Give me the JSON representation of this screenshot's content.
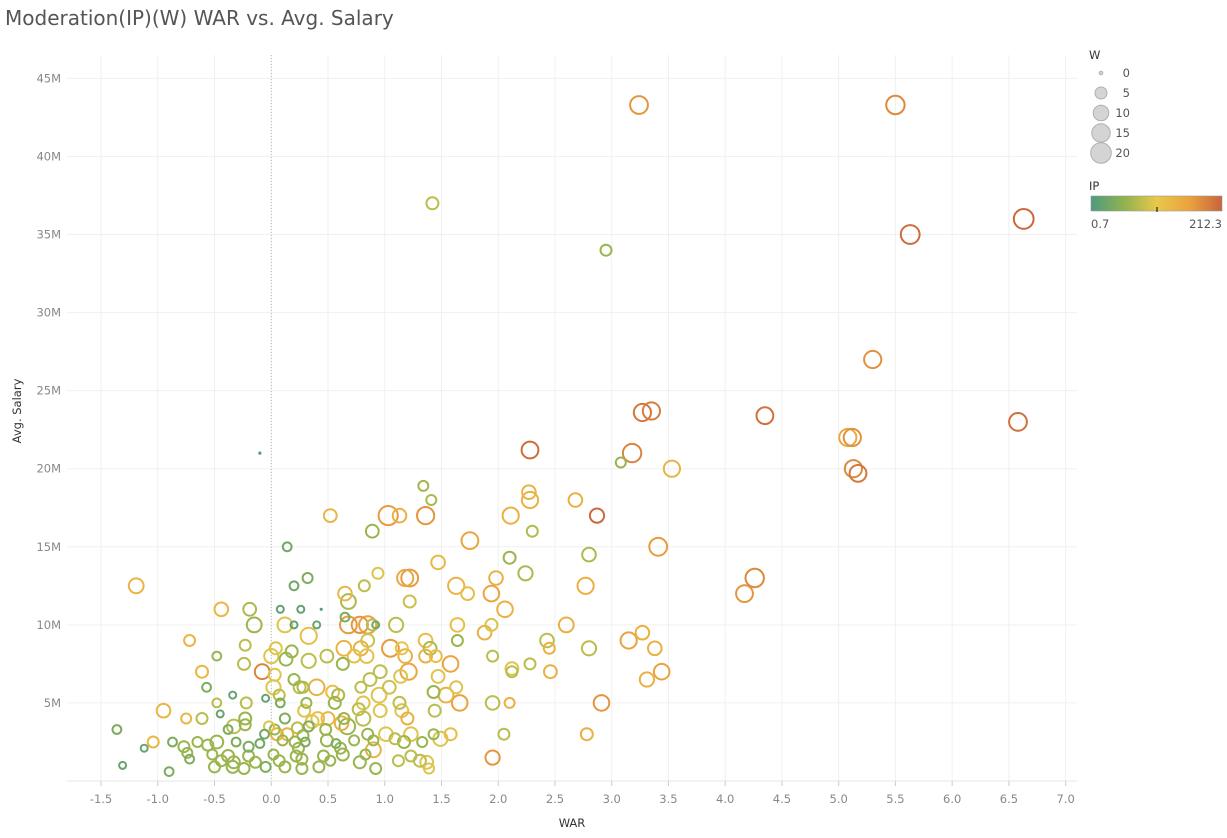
{
  "title": "Moderation(IP)(W) WAR vs. Avg. Salary",
  "chart_data": {
    "type": "scatter",
    "title": "Moderation(IP)(W) WAR vs. Avg. Salary",
    "xlabel": "WAR",
    "ylabel": "Avg. Salary",
    "xlim": [
      -1.8,
      7.1
    ],
    "ylim": [
      0,
      46500000
    ],
    "x_ticks": [
      -1.5,
      -1.0,
      -0.5,
      0.0,
      0.5,
      1.0,
      1.5,
      2.0,
      2.5,
      3.0,
      3.5,
      4.0,
      4.5,
      5.0,
      5.5,
      6.0,
      6.5,
      7.0
    ],
    "x_tick_labels": [
      "-1.5",
      "-1.0",
      "-0.5",
      "0.0",
      "0.5",
      "1.0",
      "1.5",
      "2.0",
      "2.5",
      "3.0",
      "3.5",
      "4.0",
      "4.5",
      "5.0",
      "5.5",
      "6.0",
      "6.5",
      "7.0"
    ],
    "y_ticks": [
      5000000,
      10000000,
      15000000,
      20000000,
      25000000,
      30000000,
      35000000,
      40000000,
      45000000
    ],
    "y_tick_labels": [
      "5M",
      "10M",
      "15M",
      "20M",
      "25M",
      "30M",
      "35M",
      "40M",
      "45M"
    ],
    "grid": true,
    "size_legend": {
      "title": "W",
      "placement": "top-right",
      "values": [
        0,
        5,
        10,
        15,
        20
      ],
      "labels": [
        "0",
        "5",
        "10",
        "15",
        "20"
      ]
    },
    "color_legend": {
      "title": "IP",
      "placement": "top-right",
      "min": 0.7,
      "max": 212.3,
      "min_label": "0.7",
      "max_label": "212.3",
      "colors": [
        "#4e9a80",
        "#8fb24f",
        "#e8c84a",
        "#eba23e",
        "#c8643c"
      ]
    },
    "fields": [
      "WAR",
      "Avg. Salary",
      "IP",
      "W"
    ],
    "points": [
      [
        3.24,
        43300000,
        170,
        14
      ],
      [
        5.5,
        43300000,
        180,
        15
      ],
      [
        1.42,
        37000000,
        80,
        5
      ],
      [
        2.95,
        34000000,
        60,
        4
      ],
      [
        6.63,
        36000000,
        210,
        18
      ],
      [
        5.63,
        35000000,
        205,
        16
      ],
      [
        5.3,
        27000000,
        175,
        13
      ],
      [
        3.27,
        23600000,
        195,
        13
      ],
      [
        3.35,
        23700000,
        190,
        13
      ],
      [
        4.35,
        23400000,
        200,
        12
      ],
      [
        6.58,
        23000000,
        200,
        14
      ],
      [
        2.28,
        21200000,
        205,
        12
      ],
      [
        3.18,
        21000000,
        185,
        15
      ],
      [
        3.08,
        20400000,
        60,
        3
      ],
      [
        3.53,
        20000000,
        135,
        11
      ],
      [
        5.08,
        22000000,
        150,
        13
      ],
      [
        5.12,
        22000000,
        175,
        13
      ],
      [
        5.13,
        20000000,
        180,
        13
      ],
      [
        5.17,
        19700000,
        195,
        12
      ],
      [
        -0.1,
        21000000,
        5,
        0
      ],
      [
        1.34,
        18900000,
        65,
        3
      ],
      [
        1.41,
        18000000,
        70,
        3
      ],
      [
        2.27,
        18500000,
        135,
        7
      ],
      [
        2.28,
        18000000,
        140,
        11
      ],
      [
        2.68,
        18000000,
        140,
        7
      ],
      [
        2.87,
        17000000,
        208,
        8
      ],
      [
        0.52,
        17000000,
        130,
        6
      ],
      [
        1.03,
        17000000,
        165,
        17
      ],
      [
        1.13,
        17000000,
        140,
        7
      ],
      [
        1.36,
        17000000,
        170,
        13
      ],
      [
        2.11,
        17000000,
        140,
        11
      ],
      [
        2.3,
        16000000,
        75,
        4
      ],
      [
        0.89,
        16000000,
        60,
        6
      ],
      [
        1.75,
        15400000,
        155,
        12
      ],
      [
        3.41,
        15000000,
        165,
        14
      ],
      [
        0.14,
        15000000,
        30,
        2
      ],
      [
        2.8,
        14500000,
        70,
        7
      ],
      [
        2.1,
        14300000,
        60,
        5
      ],
      [
        1.47,
        14000000,
        130,
        7
      ],
      [
        -1.19,
        12500000,
        135,
        9
      ],
      [
        2.24,
        13300000,
        70,
        8
      ],
      [
        1.18,
        13000000,
        150,
        11
      ],
      [
        1.22,
        13000000,
        165,
        12
      ],
      [
        1.98,
        13000000,
        140,
        7
      ],
      [
        4.26,
        13000000,
        180,
        15
      ],
      [
        4.17,
        12000000,
        170,
        12
      ],
      [
        2.77,
        12500000,
        140,
        11
      ],
      [
        1.63,
        12500000,
        135,
        11
      ],
      [
        1.73,
        12000000,
        120,
        6
      ],
      [
        1.94,
        12000000,
        155,
        10
      ],
      [
        0.65,
        12000000,
        130,
        7
      ],
      [
        0.68,
        11500000,
        70,
        9
      ],
      [
        1.22,
        11500000,
        90,
        5
      ],
      [
        0.32,
        13000000,
        40,
        3
      ],
      [
        0.2,
        12500000,
        30,
        2
      ],
      [
        0.82,
        12500000,
        80,
        4
      ],
      [
        0.94,
        13300000,
        100,
        4
      ],
      [
        -0.44,
        11000000,
        130,
        7
      ],
      [
        -0.19,
        11000000,
        70,
        6
      ],
      [
        2.06,
        11000000,
        140,
        10
      ],
      [
        0.68,
        10000000,
        165,
        12
      ],
      [
        0.78,
        10000000,
        170,
        11
      ],
      [
        0.85,
        10000000,
        160,
        13
      ],
      [
        0.89,
        10000000,
        80,
        4
      ],
      [
        1.1,
        10000000,
        80,
        8
      ],
      [
        1.64,
        10000000,
        120,
        7
      ],
      [
        1.94,
        10000000,
        100,
        5
      ],
      [
        2.6,
        10000000,
        140,
        9
      ],
      [
        0.12,
        10000000,
        100,
        9
      ],
      [
        -0.15,
        10000000,
        60,
        9
      ],
      [
        0.2,
        10000000,
        15,
        1
      ],
      [
        0.4,
        10000000,
        20,
        1
      ],
      [
        0.65,
        10500000,
        40,
        2
      ],
      [
        0.08,
        11000000,
        15,
        1
      ],
      [
        0.26,
        11000000,
        15,
        1
      ],
      [
        0.44,
        11000000,
        10,
        0
      ],
      [
        0.92,
        10000000,
        30,
        1
      ],
      [
        3.27,
        9500000,
        140,
        7
      ],
      [
        1.88,
        9500000,
        140,
        7
      ],
      [
        1.64,
        9000000,
        60,
        4
      ],
      [
        2.43,
        9000000,
        80,
        7
      ],
      [
        3.15,
        9000000,
        160,
        11
      ],
      [
        1.36,
        9000000,
        120,
        7
      ],
      [
        -0.72,
        9000000,
        130,
        4
      ],
      [
        0.33,
        9300000,
        120,
        11
      ],
      [
        0.85,
        9000000,
        90,
        6
      ],
      [
        -0.23,
        8700000,
        80,
        4
      ],
      [
        1.4,
        8500000,
        70,
        6
      ],
      [
        1.05,
        8500000,
        165,
        12
      ],
      [
        0.79,
        8500000,
        140,
        8
      ],
      [
        0.64,
        8500000,
        135,
        9
      ],
      [
        1.15,
        8500000,
        110,
        5
      ],
      [
        2.45,
        8500000,
        140,
        4
      ],
      [
        2.8,
        8500000,
        80,
        8
      ],
      [
        3.38,
        8500000,
        140,
        7
      ],
      [
        0.04,
        8500000,
        100,
        5
      ],
      [
        0.18,
        8300000,
        60,
        5
      ],
      [
        0.49,
        8000000,
        80,
        6
      ],
      [
        0.73,
        8000000,
        100,
        6
      ],
      [
        0.84,
        8000000,
        120,
        7
      ],
      [
        1.18,
        8000000,
        140,
        7
      ],
      [
        1.36,
        8000000,
        140,
        6
      ],
      [
        1.45,
        8000000,
        120,
        5
      ],
      [
        1.95,
        8000000,
        80,
        4
      ],
      [
        -0.48,
        8000000,
        60,
        2
      ],
      [
        0.0,
        8000000,
        100,
        8
      ],
      [
        0.13,
        7800000,
        60,
        6
      ],
      [
        0.33,
        7700000,
        80,
        8
      ],
      [
        -0.24,
        7500000,
        80,
        5
      ],
      [
        -0.61,
        7000000,
        130,
        5
      ],
      [
        1.58,
        7500000,
        155,
        10
      ],
      [
        2.12,
        7200000,
        100,
        6
      ],
      [
        2.12,
        7000000,
        80,
        4
      ],
      [
        2.28,
        7500000,
        80,
        4
      ],
      [
        3.44,
        7000000,
        160,
        10
      ],
      [
        2.46,
        7000000,
        140,
        6
      ],
      [
        0.96,
        7000000,
        80,
        6
      ],
      [
        1.21,
        7000000,
        155,
        11
      ],
      [
        0.63,
        7500000,
        60,
        5
      ],
      [
        -0.08,
        7000000,
        185,
        9
      ],
      [
        0.03,
        6800000,
        100,
        5
      ],
      [
        0.2,
        6500000,
        60,
        4
      ],
      [
        0.87,
        6500000,
        80,
        6
      ],
      [
        1.14,
        6700000,
        100,
        6
      ],
      [
        1.47,
        6700000,
        100,
        6
      ],
      [
        3.31,
        6500000,
        140,
        8
      ],
      [
        0.02,
        6000000,
        100,
        8
      ],
      [
        0.25,
        6000000,
        80,
        5
      ],
      [
        0.28,
        6000000,
        70,
        4
      ],
      [
        0.4,
        6000000,
        140,
        10
      ],
      [
        0.79,
        6000000,
        80,
        4
      ],
      [
        1.04,
        6000000,
        90,
        6
      ],
      [
        1.63,
        6000000,
        100,
        5
      ],
      [
        -0.57,
        6000000,
        40,
        2
      ],
      [
        0.54,
        5700000,
        120,
        6
      ],
      [
        0.59,
        5500000,
        70,
        5
      ],
      [
        0.95,
        5500000,
        100,
        9
      ],
      [
        1.43,
        5700000,
        60,
        5
      ],
      [
        1.54,
        5500000,
        140,
        9
      ],
      [
        0.07,
        5500000,
        80,
        4
      ],
      [
        -0.34,
        5500000,
        20,
        1
      ],
      [
        -0.05,
        5300000,
        20,
        1
      ],
      [
        0.08,
        5000000,
        40,
        2
      ],
      [
        0.31,
        5000000,
        60,
        3
      ],
      [
        0.56,
        5000000,
        60,
        5
      ],
      [
        0.81,
        5000000,
        100,
        6
      ],
      [
        1.13,
        5000000,
        80,
        5
      ],
      [
        1.66,
        5000000,
        160,
        10
      ],
      [
        1.95,
        5000000,
        80,
        7
      ],
      [
        2.1,
        5000000,
        140,
        3
      ],
      [
        2.91,
        5000000,
        170,
        10
      ],
      [
        -0.95,
        4500000,
        130,
        7
      ],
      [
        -0.48,
        5000000,
        80,
        2
      ],
      [
        -0.22,
        5000000,
        80,
        4
      ],
      [
        -0.45,
        4300000,
        20,
        1
      ],
      [
        0.29,
        4500000,
        100,
        5
      ],
      [
        0.77,
        4600000,
        80,
        5
      ],
      [
        0.96,
        4500000,
        100,
        6
      ],
      [
        1.15,
        4500000,
        100,
        6
      ],
      [
        1.44,
        4500000,
        80,
        5
      ],
      [
        0.41,
        4000000,
        120,
        6
      ],
      [
        0.5,
        4000000,
        130,
        6
      ],
      [
        0.64,
        4000000,
        60,
        4
      ],
      [
        0.81,
        4000000,
        80,
        8
      ],
      [
        1.2,
        4000000,
        140,
        5
      ],
      [
        -0.75,
        4000000,
        130,
        3
      ],
      [
        -0.61,
        4000000,
        80,
        4
      ],
      [
        -0.23,
        4000000,
        60,
        5
      ],
      [
        0.12,
        4000000,
        40,
        3
      ],
      [
        0.36,
        3800000,
        100,
        6
      ],
      [
        0.62,
        3700000,
        140,
        7
      ],
      [
        0.33,
        3500000,
        40,
        3
      ],
      [
        0.03,
        3300000,
        60,
        3
      ],
      [
        0.23,
        3400000,
        80,
        4
      ],
      [
        0.67,
        3500000,
        60,
        10
      ],
      [
        0.48,
        3300000,
        60,
        4
      ],
      [
        -0.33,
        3500000,
        80,
        7
      ],
      [
        -0.23,
        3600000,
        60,
        4
      ],
      [
        -0.38,
        3300000,
        40,
        2
      ],
      [
        -0.02,
        3500000,
        100,
        3
      ],
      [
        -1.36,
        3300000,
        40,
        2
      ],
      [
        -0.06,
        3000000,
        30,
        2
      ],
      [
        0.05,
        3000000,
        140,
        5
      ],
      [
        0.14,
        3000000,
        140,
        5
      ],
      [
        0.28,
        2900000,
        60,
        4
      ],
      [
        0.85,
        3000000,
        60,
        4
      ],
      [
        1.01,
        3000000,
        100,
        7
      ],
      [
        1.23,
        3000000,
        100,
        7
      ],
      [
        1.43,
        3000000,
        60,
        3
      ],
      [
        1.58,
        3000000,
        120,
        5
      ],
      [
        2.05,
        3000000,
        80,
        4
      ],
      [
        2.78,
        3000000,
        140,
        5
      ],
      [
        -1.04,
        2500000,
        130,
        4
      ],
      [
        -0.87,
        2500000,
        40,
        2
      ],
      [
        -0.65,
        2500000,
        60,
        3
      ],
      [
        -0.48,
        2500000,
        60,
        6
      ],
      [
        -0.31,
        2500000,
        40,
        2
      ],
      [
        -0.1,
        2400000,
        30,
        2
      ],
      [
        0.1,
        2600000,
        60,
        3
      ],
      [
        0.21,
        2500000,
        60,
        4
      ],
      [
        0.3,
        2500000,
        40,
        2
      ],
      [
        0.49,
        2600000,
        60,
        5
      ],
      [
        0.57,
        2400000,
        40,
        2
      ],
      [
        0.73,
        2600000,
        60,
        3
      ],
      [
        0.9,
        2600000,
        60,
        3
      ],
      [
        1.09,
        2700000,
        80,
        4
      ],
      [
        1.17,
        2500000,
        60,
        5
      ],
      [
        1.33,
        2500000,
        60,
        3
      ],
      [
        1.49,
        2700000,
        100,
        8
      ],
      [
        -0.77,
        2200000,
        60,
        4
      ],
      [
        -0.56,
        2300000,
        60,
        4
      ],
      [
        -0.2,
        2200000,
        40,
        3
      ],
      [
        0.24,
        2100000,
        60,
        4
      ],
      [
        0.61,
        2100000,
        60,
        4
      ],
      [
        0.9,
        2000000,
        140,
        9
      ],
      [
        -1.12,
        2100000,
        20,
        1
      ],
      [
        -0.74,
        1800000,
        60,
        3
      ],
      [
        -0.52,
        1700000,
        60,
        3
      ],
      [
        -0.38,
        1600000,
        60,
        5
      ],
      [
        -0.2,
        1600000,
        60,
        4
      ],
      [
        0.02,
        1700000,
        60,
        3
      ],
      [
        0.22,
        1600000,
        60,
        4
      ],
      [
        0.46,
        1600000,
        60,
        4
      ],
      [
        0.63,
        1700000,
        60,
        5
      ],
      [
        0.83,
        1700000,
        60,
        3
      ],
      [
        1.23,
        1600000,
        80,
        4
      ],
      [
        1.95,
        1500000,
        170,
        8
      ],
      [
        -0.72,
        1400000,
        40,
        2
      ],
      [
        -0.44,
        1300000,
        60,
        4
      ],
      [
        -0.33,
        1200000,
        60,
        5
      ],
      [
        -0.14,
        1200000,
        60,
        4
      ],
      [
        0.07,
        1300000,
        60,
        4
      ],
      [
        0.27,
        1400000,
        60,
        4
      ],
      [
        0.52,
        1300000,
        60,
        3
      ],
      [
        0.78,
        1200000,
        60,
        5
      ],
      [
        1.12,
        1300000,
        80,
        4
      ],
      [
        1.31,
        1300000,
        80,
        5
      ],
      [
        1.37,
        1200000,
        100,
        6
      ],
      [
        -1.31,
        1000000,
        20,
        1
      ],
      [
        -0.9,
        600000,
        40,
        2
      ],
      [
        -0.5,
        900000,
        60,
        4
      ],
      [
        -0.34,
        900000,
        60,
        5
      ],
      [
        -0.24,
        800000,
        60,
        4
      ],
      [
        -0.05,
        900000,
        40,
        3
      ],
      [
        0.12,
        900000,
        60,
        4
      ],
      [
        0.27,
        800000,
        60,
        4
      ],
      [
        0.42,
        900000,
        60,
        4
      ],
      [
        0.92,
        800000,
        60,
        4
      ],
      [
        1.39,
        800000,
        100,
        3
      ]
    ]
  }
}
